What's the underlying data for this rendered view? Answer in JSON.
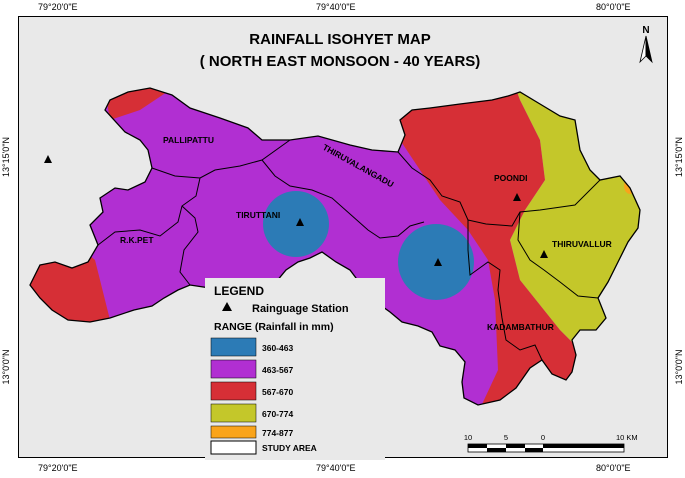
{
  "title": {
    "line1": "RAINFALL ISOHYET MAP",
    "line2": "( NORTH EAST MONSOON - 40 YEARS)"
  },
  "north_arrow": {
    "label": "N"
  },
  "coordinates": {
    "top": [
      "79°20'0\"E",
      "79°40'0\"E",
      "80°0'0\"E"
    ],
    "bottom": [
      "79°20'0\"E",
      "79°40'0\"E",
      "80°0'0\"E"
    ],
    "left": [
      "13°15'0\"N",
      "13°0'0\"N"
    ],
    "right": [
      "13°15'0\"N",
      "13°0'0\"N"
    ]
  },
  "places": [
    {
      "name": "PALLIPATTU"
    },
    {
      "name": "THIRUVALANGADU"
    },
    {
      "name": "POONDI"
    },
    {
      "name": "TIRUTTANI"
    },
    {
      "name": "R.K.PET"
    },
    {
      "name": "THIRUVALLUR"
    },
    {
      "name": "KADAMBATHUR"
    }
  ],
  "legend": {
    "title": "LEGEND",
    "station_label": "Rainguage Station",
    "range_title": "RANGE (Rainfall in mm)",
    "ranges": [
      {
        "label": "360-463",
        "color": "#2c7bb6"
      },
      {
        "label": "463-567",
        "color": "#b12fd2"
      },
      {
        "label": "567-670",
        "color": "#d62f36"
      },
      {
        "label": "670-774",
        "color": "#c4c72a"
      },
      {
        "label": "774-877",
        "color": "#f9a41b"
      }
    ],
    "study_area_label": "STUDY AREA"
  },
  "scale_bar": {
    "labels": [
      "10",
      "5",
      "0",
      "10 KM"
    ]
  },
  "colors": {
    "background": "#e9e9e9",
    "zone_360_463": "#2c7bb6",
    "zone_463_567": "#b12fd2",
    "zone_567_670": "#d62f36",
    "zone_670_774": "#c4c72a",
    "zone_774_877": "#f9a41b"
  }
}
